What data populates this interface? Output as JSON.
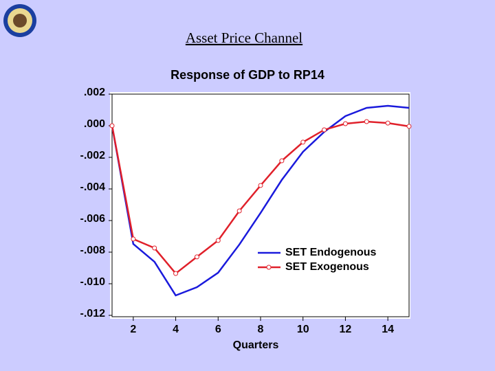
{
  "slide_title": "Asset Price Channel",
  "chart_data": {
    "type": "line",
    "title": "Response of GDP to RP14",
    "x_label": "Quarters",
    "x": [
      1,
      2,
      3,
      4,
      5,
      6,
      7,
      8,
      9,
      10,
      11,
      12,
      13,
      14,
      15
    ],
    "xlim": [
      1,
      15
    ],
    "xticks": [
      2,
      4,
      6,
      8,
      10,
      12,
      14
    ],
    "ylim": [
      -0.012,
      0.002
    ],
    "yticks": [
      {
        "value": 0.002,
        "label": ".002"
      },
      {
        "value": 0,
        "label": ".000"
      },
      {
        "value": -0.002,
        "label": "-.002"
      },
      {
        "value": -0.004,
        "label": "-.004"
      },
      {
        "value": -0.006,
        "label": "-.006"
      },
      {
        "value": -0.008,
        "label": "-.008"
      },
      {
        "value": -0.01,
        "label": "-.010"
      },
      {
        "value": -0.012,
        "label": "-.012"
      }
    ],
    "grid": false,
    "legend": "lower-right",
    "series": [
      {
        "name": "SET Endogenous",
        "color": "#1a1adc",
        "marker": false,
        "values": [
          0,
          -0.00748,
          -0.00861,
          -0.01074,
          -0.01022,
          -0.0093,
          -0.00752,
          -0.00552,
          -0.00343,
          -0.00165,
          -0.00039,
          0.00061,
          0.00113,
          0.00126,
          0.00113
        ]
      },
      {
        "name": "SET Exogenous",
        "color": "#e0202a",
        "marker": true,
        "values": [
          0,
          -0.00717,
          -0.00774,
          -0.00935,
          -0.0083,
          -0.00726,
          -0.00539,
          -0.00378,
          -0.00222,
          -0.00104,
          -0.00026,
          0.00013,
          0.00026,
          0.00017,
          -4e-05
        ]
      }
    ]
  }
}
